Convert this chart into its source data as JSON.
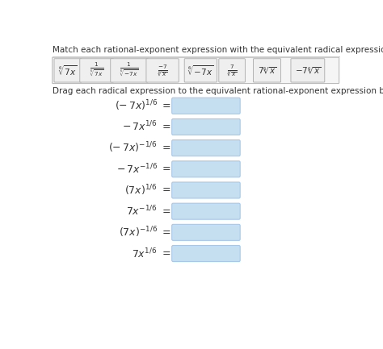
{
  "title": "Match each rational-exponent expression with the equivalent radical expression. Assume that x is not zero.",
  "subtitle": "Drag each radical expression to the equivalent rational-exponent expression below.",
  "bg_color": "#ffffff",
  "box_color": "#c5dff0",
  "box_border": "#a8c8e8",
  "header_border": "#bbbbbb",
  "header_bg": "#f5f5f5",
  "text_color": "#333333",
  "title_fontsize": 7.5,
  "subtitle_fontsize": 7.5,
  "expr_fontsize": 9,
  "header_fontsize": 8,
  "row_labels": [
    [
      "(-",
      "7x)^{1/6}",
      " ="
    ],
    [
      "-",
      "7x^{1/6}",
      " ="
    ],
    [
      "(-",
      "7x)^{-1/6}",
      " ="
    ],
    [
      "-",
      "7x^{-1/6}",
      " ="
    ],
    [
      "(7x)^{1/6}",
      " ="
    ],
    [
      "7x^{-1/6}",
      " ="
    ],
    [
      "(7x)^{-1/6}",
      " ="
    ],
    [
      "7x^{1/6}",
      " ="
    ]
  ],
  "header_exprs": [
    "$\\sqrt[6]{7x}$",
    "$\\frac{1}{\\sqrt[6]{7x}}$",
    "$\\frac{1}{\\sqrt[6]{-7x}}$",
    "$\\frac{-7}{\\sqrt[6]{x}}$",
    "$\\sqrt[6]{-7x}$",
    "$\\frac{7}{\\sqrt[6]{x}}$",
    "$7\\sqrt[6]{x}$",
    "$-7\\sqrt[6]{x}$"
  ]
}
